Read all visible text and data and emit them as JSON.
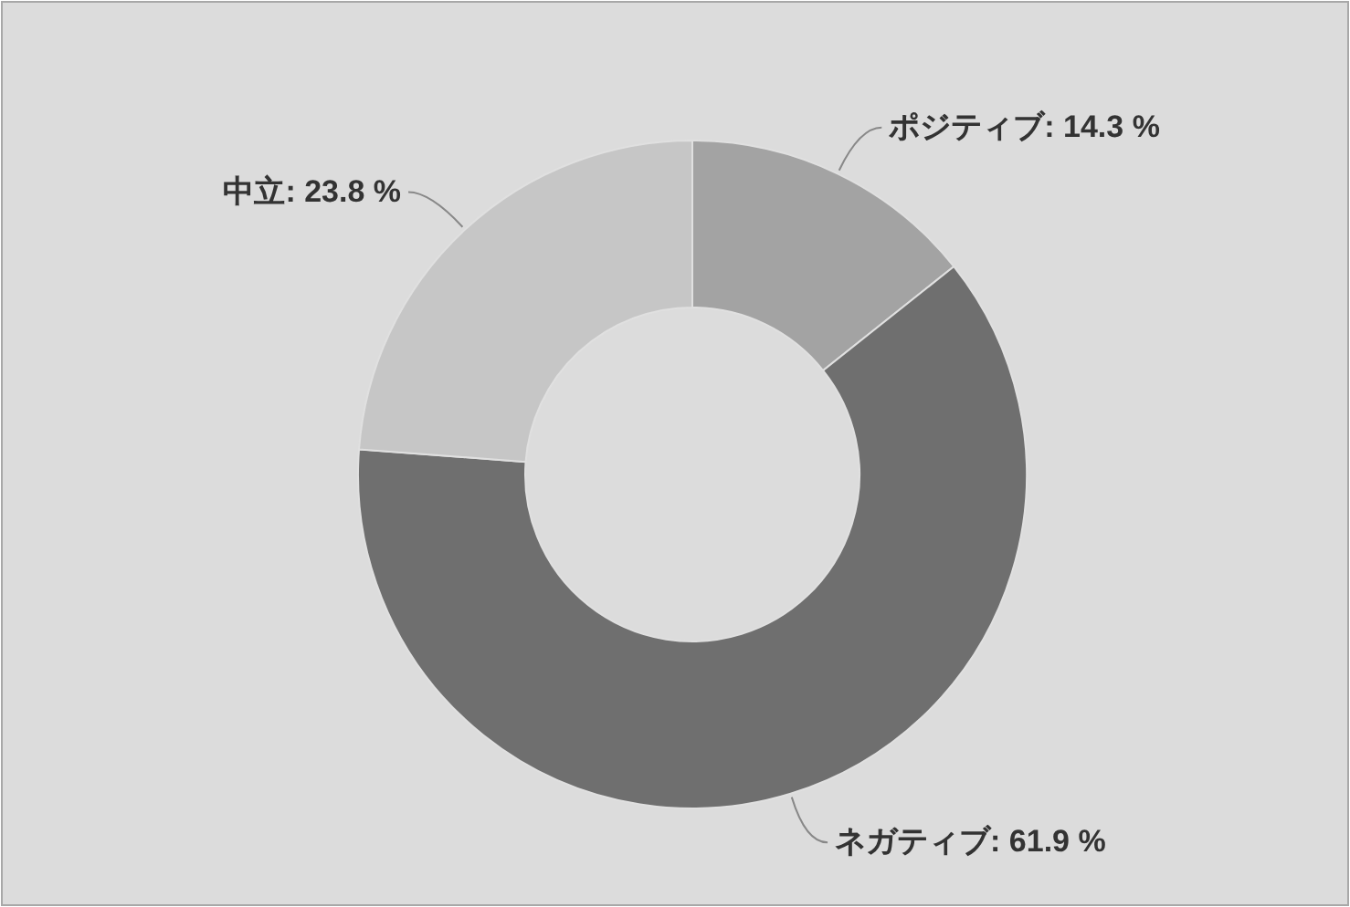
{
  "chart_data": {
    "type": "donut",
    "categories": [
      "ポジティブ",
      "ネガティブ",
      "中立"
    ],
    "values": [
      14.3,
      61.9,
      23.8
    ],
    "value_labels": [
      "14.3 %",
      "61.9 %",
      "23.8 %"
    ],
    "colors": [
      "#a3a3a3",
      "#6f6f6f",
      "#c6c6c6"
    ]
  }
}
